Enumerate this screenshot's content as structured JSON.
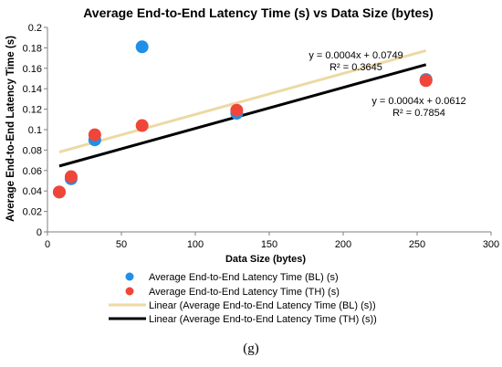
{
  "caption": "(g)",
  "chart_data": {
    "type": "scatter",
    "title": "Average End-to-End Latency Time (s) vs Data Size (bytes)",
    "xlabel": "Data Size (bytes)",
    "ylabel": "Average End-to-End Latency Time (s)",
    "xlim": [
      0,
      300
    ],
    "ylim": [
      0,
      0.2
    ],
    "xticks": [
      0,
      50,
      100,
      150,
      200,
      250,
      300
    ],
    "yticks": [
      0,
      0.02,
      0.04,
      0.06,
      0.08,
      0.1,
      0.12,
      0.14,
      0.16,
      0.18,
      0.2
    ],
    "xtick_labels": [
      "0",
      "50",
      "100",
      "150",
      "200",
      "250",
      "300"
    ],
    "ytick_labels": [
      "0",
      "0.02",
      "0.04",
      "0.06",
      "0.08",
      "0.1",
      "0.12",
      "0.14",
      "0.16",
      "0.18",
      "0.2"
    ],
    "grid": false,
    "legend_position": "bottom",
    "series": [
      {
        "name": "Average End-to-End Latency Time (BL) (s)",
        "color": "#1f8fe8",
        "x": [
          8,
          16,
          32,
          64,
          128,
          256
        ],
        "y": [
          0.039,
          0.052,
          0.09,
          0.181,
          0.116,
          0.149
        ]
      },
      {
        "name": "Average End-to-End Latency Time (TH) (s)",
        "color": "#f0463a",
        "x": [
          8,
          16,
          32,
          64,
          128,
          256
        ],
        "y": [
          0.039,
          0.054,
          0.095,
          0.104,
          0.119,
          0.148
        ]
      }
    ],
    "trendlines": [
      {
        "name": "Linear (Average End-to-End Latency Time (BL) (s))",
        "color": "#ecd9a4",
        "slope": 0.0004,
        "intercept": 0.0749,
        "x_range": [
          8,
          256
        ],
        "equation": "y = 0.0004x + 0.0749",
        "r2": "R² = 0.3645"
      },
      {
        "name": "Linear (Average End-to-End Latency Time (TH) (s))",
        "color": "#000000",
        "slope": 0.0004,
        "intercept": 0.0612,
        "x_range": [
          8,
          256
        ],
        "equation": "y = 0.0004x + 0.0612",
        "r2": "R² = 0.7854"
      }
    ]
  }
}
